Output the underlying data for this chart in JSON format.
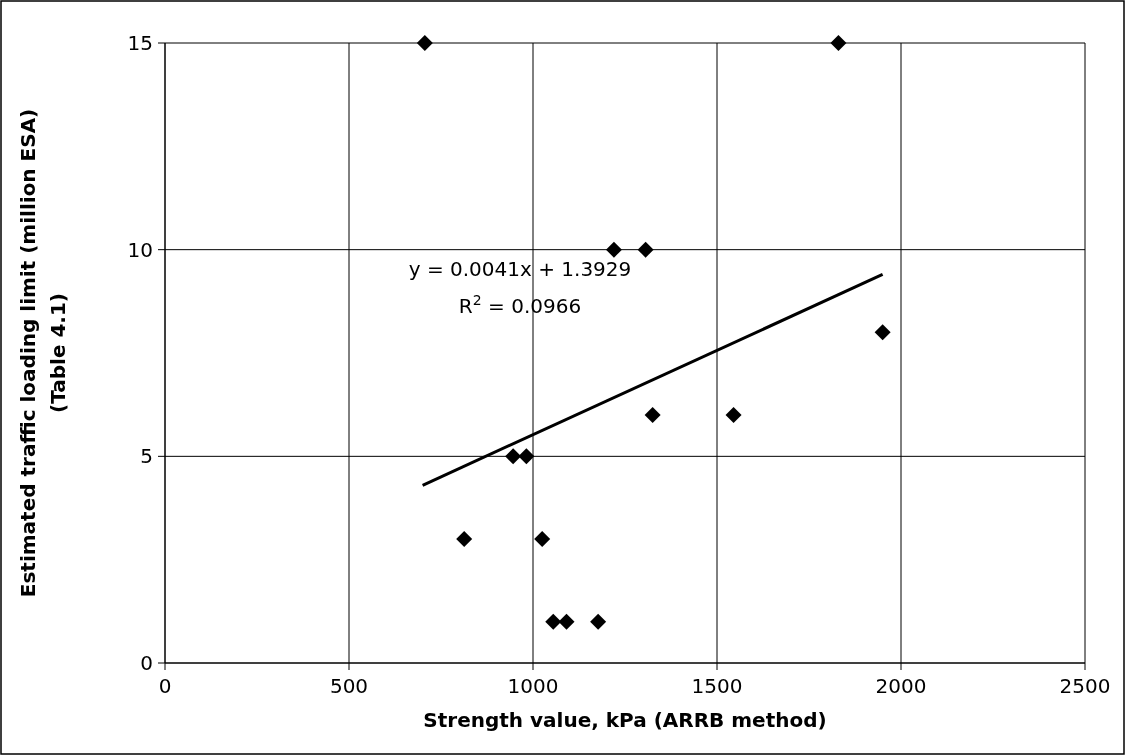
{
  "chart_data": {
    "type": "scatter",
    "xlabel": "Strength value, kPa (ARRB method)",
    "ylabel": "Estimated traffic loading limit (million ESA)\n(Table 4.1)",
    "xlim": [
      0,
      2500
    ],
    "xticks": [
      0,
      500,
      1000,
      1500,
      2000,
      2500
    ],
    "ylim": [
      0,
      15
    ],
    "yticks": [
      0,
      5,
      10,
      15
    ],
    "grid": true,
    "series": [
      {
        "color": "#000000",
        "marker": "diamond",
        "x": [
          706,
          1830,
          1220,
          1306,
          946,
          982,
          813,
          1025,
          1055,
          1091,
          1177,
          1325,
          1545,
          1950
        ],
        "values": [
          15,
          15,
          10,
          10,
          5,
          5,
          3,
          3,
          1,
          1,
          1,
          6,
          6,
          8
        ]
      },
      {
        "type": "line",
        "color": "#000000",
        "marker": "none",
        "line_style": "solid",
        "x": [
          700,
          1950
        ],
        "values": [
          4.3,
          9.4
        ]
      }
    ],
    "annotations": [
      "y = 0.0041x + 1.3929",
      "R$^{2}$ = 0.0966"
    ]
  }
}
